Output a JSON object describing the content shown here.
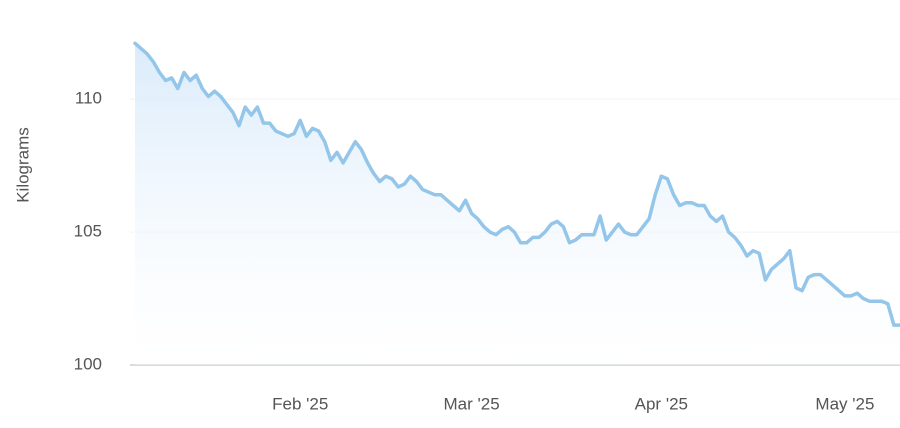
{
  "chart_data": {
    "type": "line",
    "y_label": "Kilograms",
    "ylim": [
      100,
      112.6
    ],
    "yticks": [
      100,
      105,
      110
    ],
    "grid": true,
    "color": "#94c6ea",
    "categories": [
      null,
      null,
      null,
      null,
      null,
      null,
      null,
      null,
      null,
      null,
      null,
      null,
      null,
      null,
      null,
      null,
      null,
      null,
      null,
      null,
      null,
      null,
      null,
      null,
      null,
      null,
      null,
      "Feb '25",
      null,
      null,
      null,
      null,
      null,
      null,
      null,
      null,
      null,
      null,
      null,
      null,
      null,
      null,
      null,
      null,
      null,
      null,
      null,
      null,
      null,
      null,
      null,
      null,
      null,
      null,
      null,
      "Mar '25",
      null,
      null,
      null,
      null,
      null,
      null,
      null,
      null,
      null,
      null,
      null,
      null,
      null,
      null,
      null,
      null,
      null,
      null,
      null,
      null,
      null,
      null,
      null,
      null,
      null,
      null,
      null,
      null,
      null,
      null,
      "Apr '25",
      null,
      null,
      null,
      null,
      null,
      null,
      null,
      null,
      null,
      null,
      null,
      null,
      null,
      null,
      null,
      null,
      null,
      null,
      null,
      null,
      null,
      null,
      null,
      null,
      null,
      null,
      null,
      null,
      null,
      "May '25",
      null,
      null,
      null,
      null,
      null,
      null,
      null,
      null,
      null
    ],
    "values": [
      112.1,
      111.9,
      111.7,
      111.4,
      111.0,
      110.7,
      110.8,
      110.4,
      111.0,
      110.7,
      110.9,
      110.4,
      110.1,
      110.3,
      110.1,
      109.8,
      109.5,
      109.0,
      109.7,
      109.4,
      109.7,
      109.1,
      109.1,
      108.8,
      108.7,
      108.6,
      108.7,
      109.2,
      108.6,
      108.9,
      108.8,
      108.4,
      107.7,
      108.0,
      107.6,
      108.0,
      108.4,
      108.1,
      107.6,
      107.2,
      106.9,
      107.1,
      107.0,
      106.7,
      106.8,
      107.1,
      106.9,
      106.6,
      106.5,
      106.4,
      106.4,
      106.2,
      106.0,
      105.8,
      106.2,
      105.7,
      105.5,
      105.2,
      105.0,
      104.9,
      105.1,
      105.2,
      105.0,
      104.6,
      104.6,
      104.8,
      104.8,
      105.0,
      105.3,
      105.4,
      105.2,
      104.6,
      104.7,
      104.9,
      104.9,
      104.9,
      105.6,
      104.7,
      105.0,
      105.3,
      105.0,
      104.9,
      104.9,
      105.2,
      105.5,
      106.4,
      107.1,
      107.0,
      106.4,
      106.0,
      106.1,
      106.1,
      106.0,
      106.0,
      105.6,
      105.4,
      105.6,
      105.0,
      104.8,
      104.5,
      104.1,
      104.3,
      104.2,
      103.2,
      103.6,
      103.8,
      104.0,
      104.3,
      102.9,
      102.8,
      103.3,
      103.4,
      103.4,
      103.2,
      103.0,
      102.8,
      102.6,
      102.6,
      102.7,
      102.5,
      102.4,
      102.4,
      102.4,
      102.3,
      101.5,
      101.5
    ]
  }
}
